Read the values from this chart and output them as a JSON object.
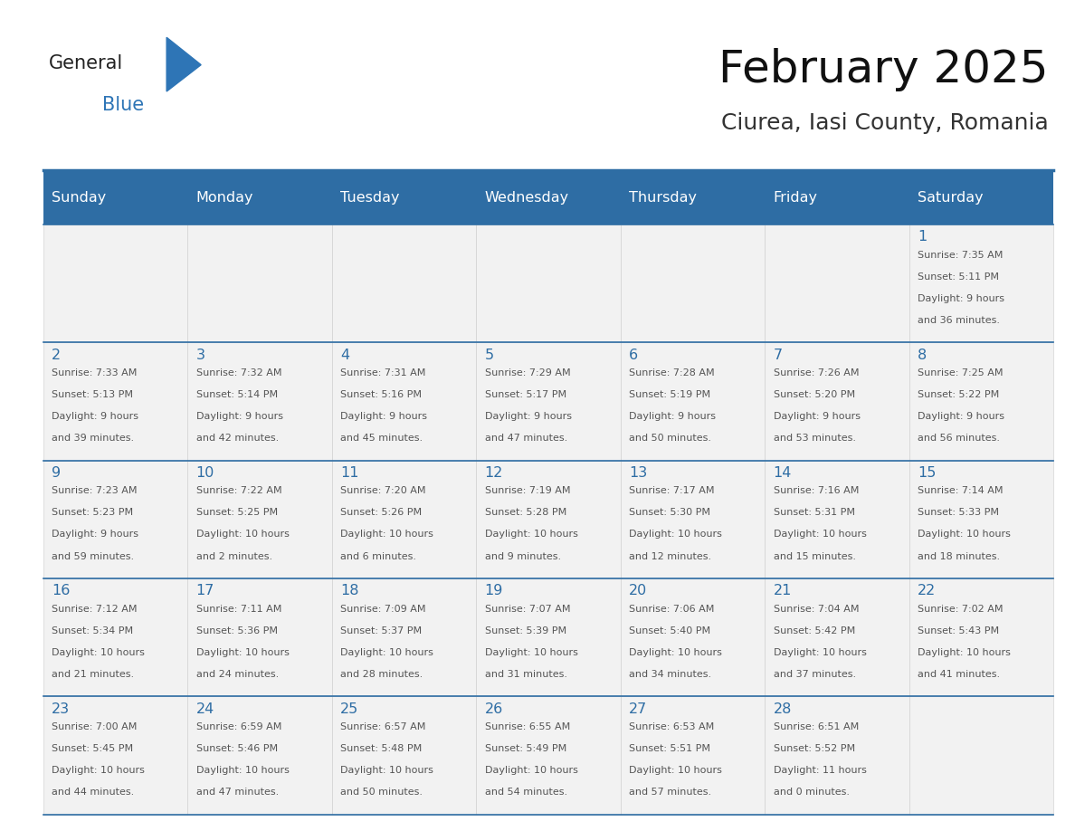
{
  "title": "February 2025",
  "subtitle": "Ciurea, Iasi County, Romania",
  "header_bg": "#2E6DA4",
  "header_text_color": "#FFFFFF",
  "cell_bg": "#F2F2F2",
  "day_number_color": "#2E6DA4",
  "text_color": "#555555",
  "grid_color": "#CCCCCC",
  "days_of_week": [
    "Sunday",
    "Monday",
    "Tuesday",
    "Wednesday",
    "Thursday",
    "Friday",
    "Saturday"
  ],
  "logo_general_color": "#222222",
  "logo_blue_color": "#2E75B6",
  "calendar": [
    [
      null,
      null,
      null,
      null,
      null,
      null,
      {
        "day": 1,
        "sunrise": "7:35 AM",
        "sunset": "5:11 PM",
        "daylight": "9 hours",
        "daylight2": "and 36 minutes."
      }
    ],
    [
      {
        "day": 2,
        "sunrise": "7:33 AM",
        "sunset": "5:13 PM",
        "daylight": "9 hours",
        "daylight2": "and 39 minutes."
      },
      {
        "day": 3,
        "sunrise": "7:32 AM",
        "sunset": "5:14 PM",
        "daylight": "9 hours",
        "daylight2": "and 42 minutes."
      },
      {
        "day": 4,
        "sunrise": "7:31 AM",
        "sunset": "5:16 PM",
        "daylight": "9 hours",
        "daylight2": "and 45 minutes."
      },
      {
        "day": 5,
        "sunrise": "7:29 AM",
        "sunset": "5:17 PM",
        "daylight": "9 hours",
        "daylight2": "and 47 minutes."
      },
      {
        "day": 6,
        "sunrise": "7:28 AM",
        "sunset": "5:19 PM",
        "daylight": "9 hours",
        "daylight2": "and 50 minutes."
      },
      {
        "day": 7,
        "sunrise": "7:26 AM",
        "sunset": "5:20 PM",
        "daylight": "9 hours",
        "daylight2": "and 53 minutes."
      },
      {
        "day": 8,
        "sunrise": "7:25 AM",
        "sunset": "5:22 PM",
        "daylight": "9 hours",
        "daylight2": "and 56 minutes."
      }
    ],
    [
      {
        "day": 9,
        "sunrise": "7:23 AM",
        "sunset": "5:23 PM",
        "daylight": "9 hours",
        "daylight2": "and 59 minutes."
      },
      {
        "day": 10,
        "sunrise": "7:22 AM",
        "sunset": "5:25 PM",
        "daylight": "10 hours",
        "daylight2": "and 2 minutes."
      },
      {
        "day": 11,
        "sunrise": "7:20 AM",
        "sunset": "5:26 PM",
        "daylight": "10 hours",
        "daylight2": "and 6 minutes."
      },
      {
        "day": 12,
        "sunrise": "7:19 AM",
        "sunset": "5:28 PM",
        "daylight": "10 hours",
        "daylight2": "and 9 minutes."
      },
      {
        "day": 13,
        "sunrise": "7:17 AM",
        "sunset": "5:30 PM",
        "daylight": "10 hours",
        "daylight2": "and 12 minutes."
      },
      {
        "day": 14,
        "sunrise": "7:16 AM",
        "sunset": "5:31 PM",
        "daylight": "10 hours",
        "daylight2": "and 15 minutes."
      },
      {
        "day": 15,
        "sunrise": "7:14 AM",
        "sunset": "5:33 PM",
        "daylight": "10 hours",
        "daylight2": "and 18 minutes."
      }
    ],
    [
      {
        "day": 16,
        "sunrise": "7:12 AM",
        "sunset": "5:34 PM",
        "daylight": "10 hours",
        "daylight2": "and 21 minutes."
      },
      {
        "day": 17,
        "sunrise": "7:11 AM",
        "sunset": "5:36 PM",
        "daylight": "10 hours",
        "daylight2": "and 24 minutes."
      },
      {
        "day": 18,
        "sunrise": "7:09 AM",
        "sunset": "5:37 PM",
        "daylight": "10 hours",
        "daylight2": "and 28 minutes."
      },
      {
        "day": 19,
        "sunrise": "7:07 AM",
        "sunset": "5:39 PM",
        "daylight": "10 hours",
        "daylight2": "and 31 minutes."
      },
      {
        "day": 20,
        "sunrise": "7:06 AM",
        "sunset": "5:40 PM",
        "daylight": "10 hours",
        "daylight2": "and 34 minutes."
      },
      {
        "day": 21,
        "sunrise": "7:04 AM",
        "sunset": "5:42 PM",
        "daylight": "10 hours",
        "daylight2": "and 37 minutes."
      },
      {
        "day": 22,
        "sunrise": "7:02 AM",
        "sunset": "5:43 PM",
        "daylight": "10 hours",
        "daylight2": "and 41 minutes."
      }
    ],
    [
      {
        "day": 23,
        "sunrise": "7:00 AM",
        "sunset": "5:45 PM",
        "daylight": "10 hours",
        "daylight2": "and 44 minutes."
      },
      {
        "day": 24,
        "sunrise": "6:59 AM",
        "sunset": "5:46 PM",
        "daylight": "10 hours",
        "daylight2": "and 47 minutes."
      },
      {
        "day": 25,
        "sunrise": "6:57 AM",
        "sunset": "5:48 PM",
        "daylight": "10 hours",
        "daylight2": "and 50 minutes."
      },
      {
        "day": 26,
        "sunrise": "6:55 AM",
        "sunset": "5:49 PM",
        "daylight": "10 hours",
        "daylight2": "and 54 minutes."
      },
      {
        "day": 27,
        "sunrise": "6:53 AM",
        "sunset": "5:51 PM",
        "daylight": "10 hours",
        "daylight2": "and 57 minutes."
      },
      {
        "day": 28,
        "sunrise": "6:51 AM",
        "sunset": "5:52 PM",
        "daylight": "11 hours",
        "daylight2": "and 0 minutes."
      },
      null
    ]
  ]
}
